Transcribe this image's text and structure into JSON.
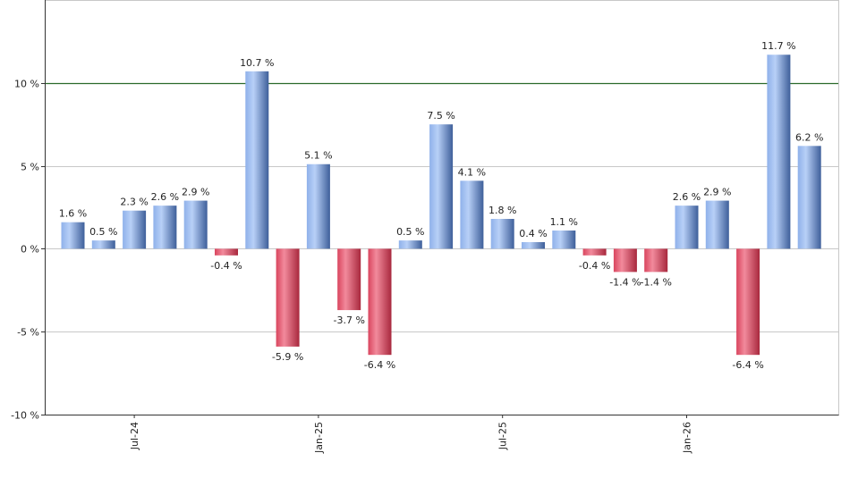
{
  "chart_data": {
    "type": "bar",
    "title": "",
    "xlabel": "",
    "ylabel": "",
    "ylim": [
      -10,
      15
    ],
    "yticks": [
      -10,
      -5,
      0,
      5,
      10
    ],
    "ytick_suffix": " %",
    "value_suffix": " %",
    "reference_line": 10,
    "grid": true,
    "x_tick_labels": [
      {
        "label": "Jul-24",
        "index": 2
      },
      {
        "label": "Jan-25",
        "index": 8
      },
      {
        "label": "Jul-25",
        "index": 14
      },
      {
        "label": "Jan-26",
        "index": 20
      }
    ],
    "values": [
      1.6,
      0.5,
      2.3,
      2.6,
      2.9,
      -0.4,
      10.7,
      -5.9,
      5.1,
      -3.7,
      -6.4,
      0.5,
      7.5,
      4.1,
      1.8,
      0.4,
      1.1,
      -0.4,
      -1.4,
      -1.4,
      2.6,
      2.9,
      -6.4,
      11.7,
      6.2
    ],
    "colors": {
      "positive_light": "#a9c6f5",
      "positive_dark": "#3e5f9a",
      "negative_light": "#f07a90",
      "negative_dark": "#a8283d",
      "reference_line": "#2a6a2a",
      "grid": "#c8c8c8",
      "axis": "#333333"
    }
  }
}
